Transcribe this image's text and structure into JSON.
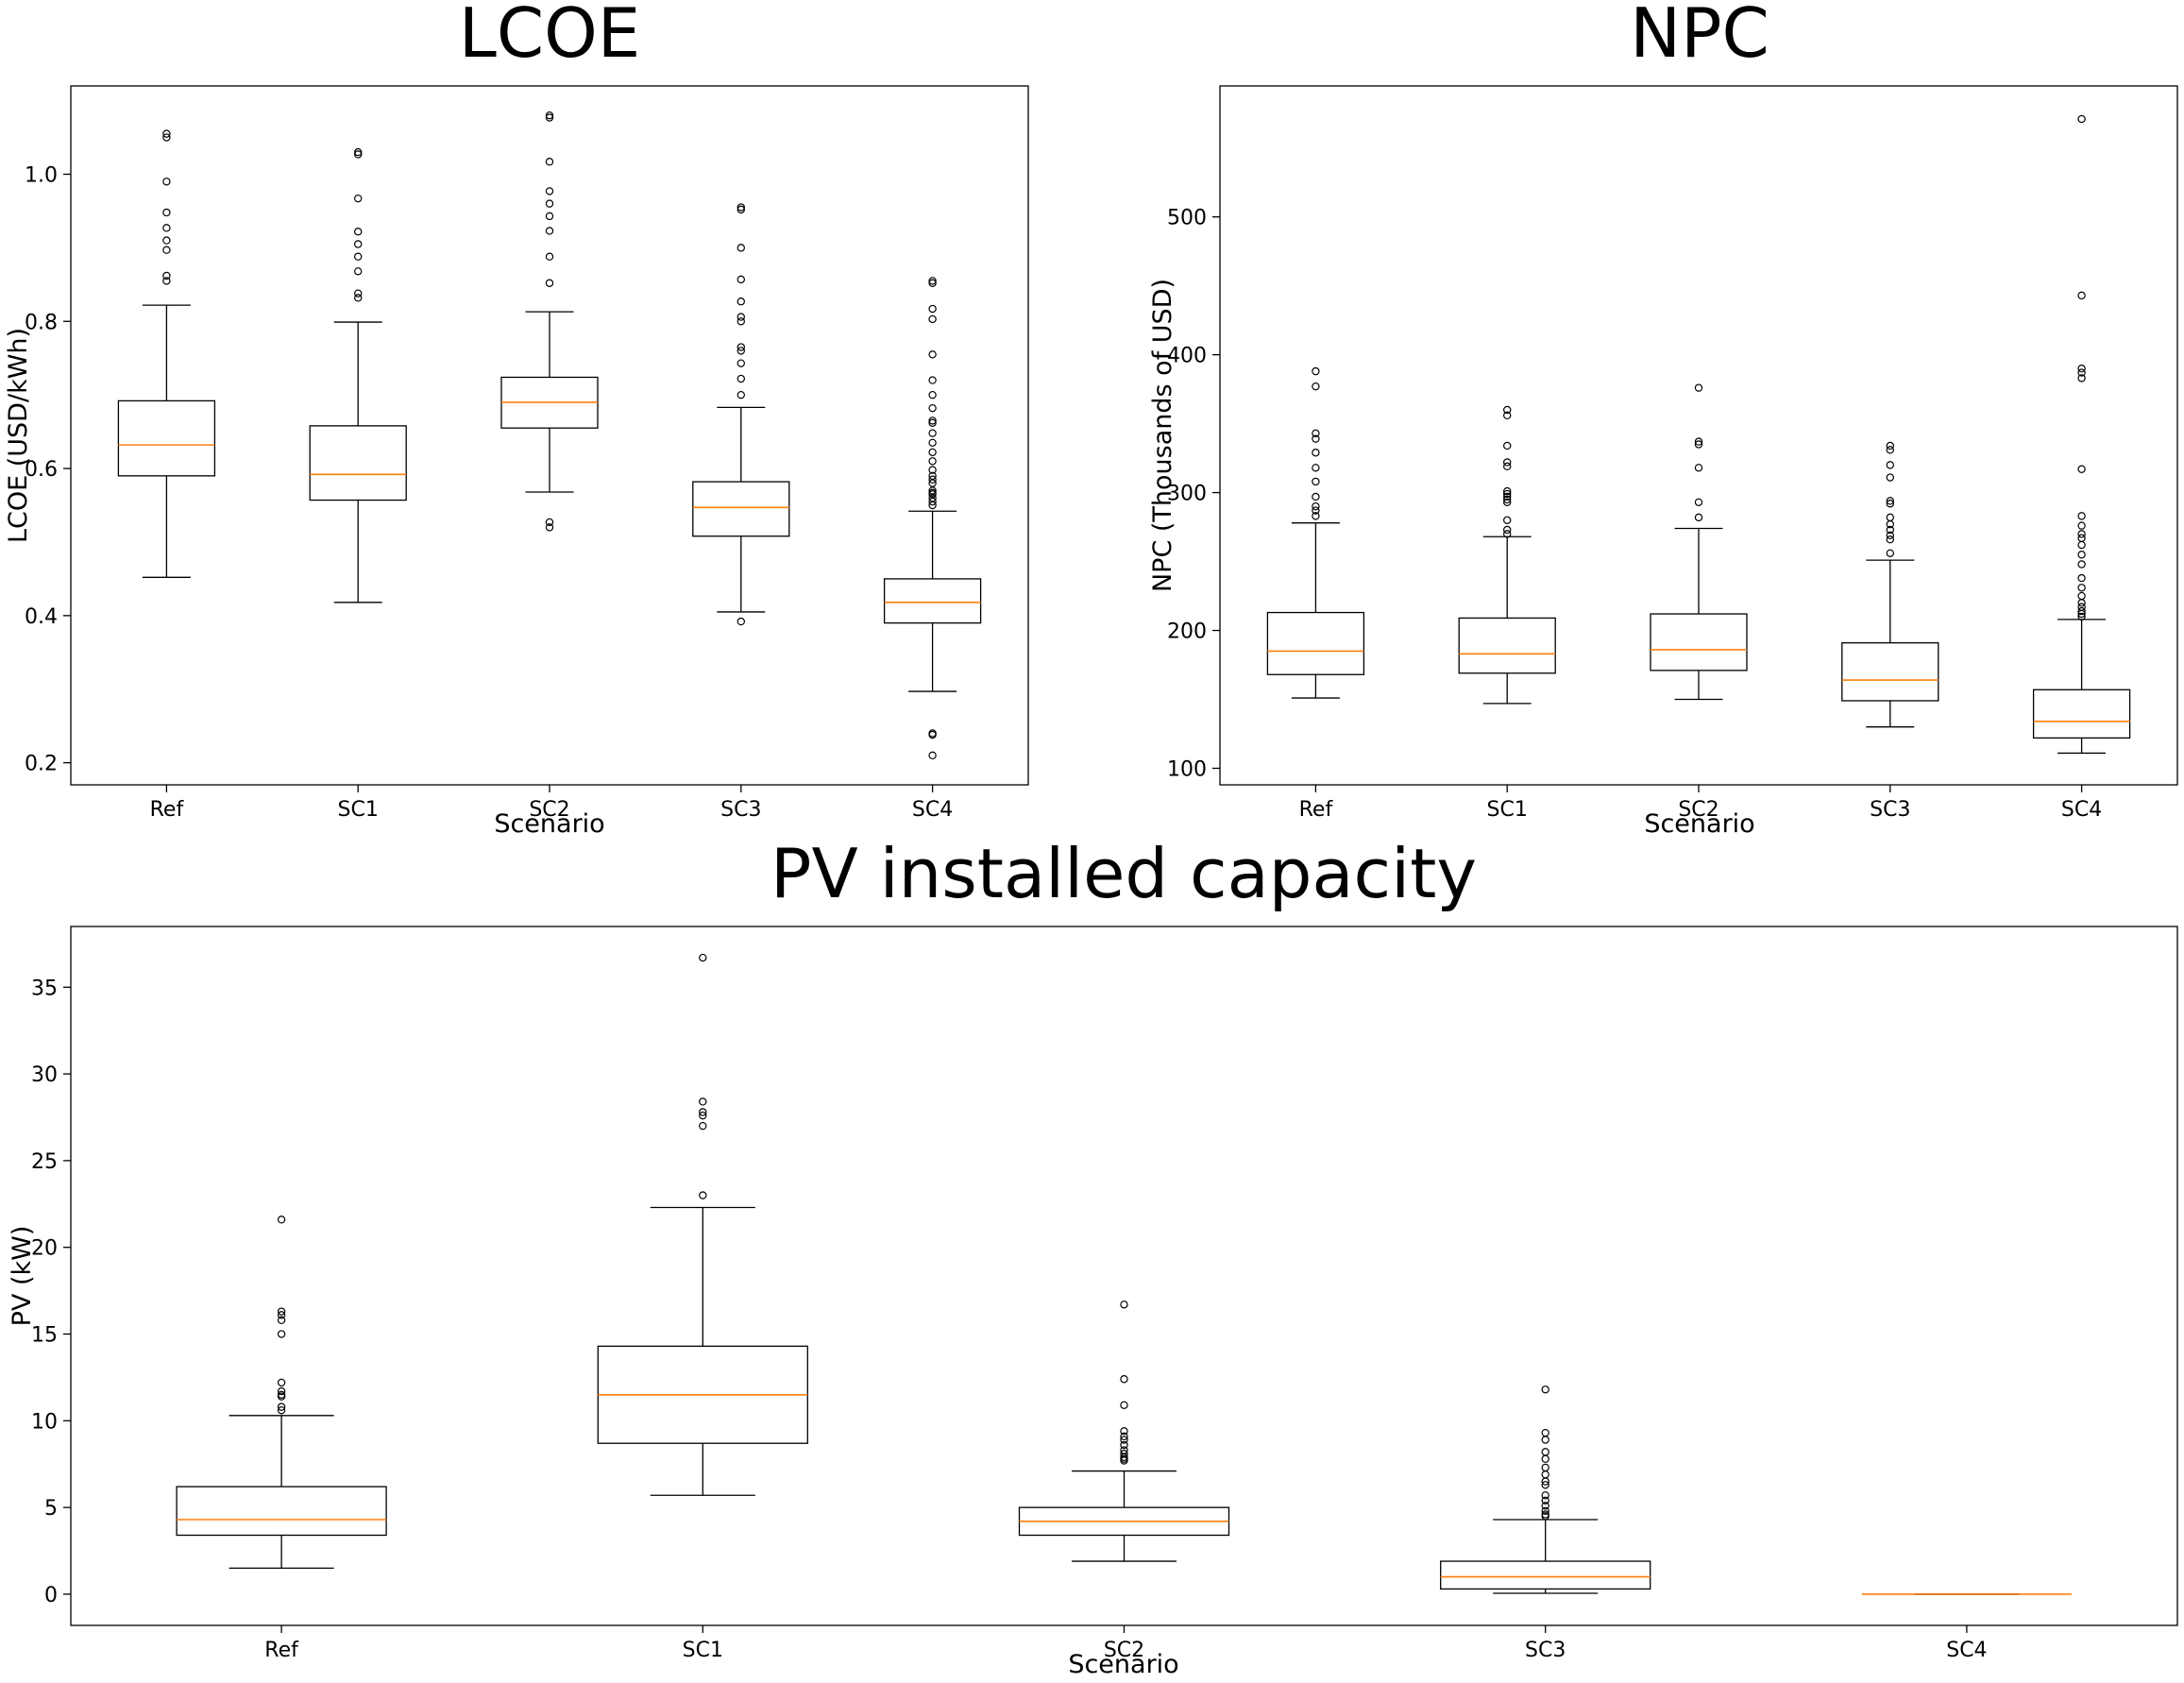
{
  "chart_data": [
    {
      "type": "box",
      "title": "LCOE",
      "xlabel": "Scenario",
      "ylabel": "LCOE (USD/kWh)",
      "categories": [
        "Ref",
        "SC1",
        "SC2",
        "SC3",
        "SC4"
      ],
      "ylim": [
        0.17,
        1.12
      ],
      "yticks": [
        0.2,
        0.4,
        0.6,
        0.8,
        1.0
      ],
      "ytick_labels": [
        "0.2",
        "0.4",
        "0.6",
        "0.8",
        "1.0"
      ],
      "boxes": [
        {
          "category": "Ref",
          "whisker_low": 0.452,
          "q1": 0.59,
          "median": 0.632,
          "q3": 0.692,
          "whisker_high": 0.822,
          "outliers": [
            1.055,
            1.05,
            0.99,
            0.948,
            0.927,
            0.91,
            0.897,
            0.862,
            0.855
          ]
        },
        {
          "category": "SC1",
          "whisker_low": 0.418,
          "q1": 0.557,
          "median": 0.592,
          "q3": 0.658,
          "whisker_high": 0.799,
          "outliers": [
            1.03,
            1.027,
            0.967,
            0.922,
            0.905,
            0.888,
            0.868,
            0.838,
            0.832
          ]
        },
        {
          "category": "SC2",
          "whisker_low": 0.568,
          "q1": 0.655,
          "median": 0.69,
          "q3": 0.724,
          "whisker_high": 0.813,
          "outliers": [
            1.08,
            1.077,
            1.017,
            0.977,
            0.96,
            0.943,
            0.923,
            0.888,
            0.852,
            0.527,
            0.52
          ]
        },
        {
          "category": "SC3",
          "whisker_low": 0.405,
          "q1": 0.508,
          "median": 0.547,
          "q3": 0.582,
          "whisker_high": 0.683,
          "outliers": [
            0.955,
            0.952,
            0.9,
            0.857,
            0.827,
            0.806,
            0.8,
            0.765,
            0.76,
            0.743,
            0.722,
            0.7,
            0.392
          ]
        },
        {
          "category": "SC4",
          "whisker_low": 0.297,
          "q1": 0.39,
          "median": 0.418,
          "q3": 0.45,
          "whisker_high": 0.542,
          "outliers": [
            0.855,
            0.852,
            0.817,
            0.803,
            0.755,
            0.72,
            0.7,
            0.682,
            0.665,
            0.662,
            0.648,
            0.635,
            0.622,
            0.61,
            0.598,
            0.59,
            0.585,
            0.58,
            0.57,
            0.567,
            0.565,
            0.56,
            0.555,
            0.55,
            0.24,
            0.238,
            0.21
          ]
        }
      ]
    },
    {
      "type": "box",
      "title": "NPC",
      "xlabel": "Scenario",
      "ylabel": "NPC (Thousands of USD)",
      "categories": [
        "Ref",
        "SC1",
        "SC2",
        "SC3",
        "SC4"
      ],
      "ylim": [
        88,
        595
      ],
      "yticks": [
        100,
        200,
        300,
        400,
        500
      ],
      "ytick_labels": [
        "100",
        "200",
        "300",
        "400",
        "500"
      ],
      "boxes": [
        {
          "category": "Ref",
          "whisker_low": 151,
          "q1": 168,
          "median": 185,
          "q3": 213,
          "whisker_high": 278,
          "outliers": [
            388,
            377,
            343,
            339,
            329,
            318,
            308,
            297,
            290,
            287,
            283
          ]
        },
        {
          "category": "SC1",
          "whisker_low": 147,
          "q1": 169,
          "median": 183,
          "q3": 209,
          "whisker_high": 268,
          "outliers": [
            360,
            356,
            334,
            322,
            319,
            301,
            299,
            297,
            295,
            293,
            280,
            273,
            270
          ]
        },
        {
          "category": "SC2",
          "whisker_low": 150,
          "q1": 171,
          "median": 186,
          "q3": 212,
          "whisker_high": 274,
          "outliers": [
            376,
            337,
            335,
            318,
            293,
            282
          ]
        },
        {
          "category": "SC3",
          "whisker_low": 130,
          "q1": 149,
          "median": 164,
          "q3": 191,
          "whisker_high": 251,
          "outliers": [
            334,
            331,
            320,
            311,
            294,
            292,
            282,
            277,
            273,
            269,
            266,
            256
          ]
        },
        {
          "category": "SC4",
          "whisker_low": 111,
          "q1": 122,
          "median": 134,
          "q3": 157,
          "whisker_high": 208,
          "outliers": [
            571,
            443,
            390,
            387,
            383,
            317,
            283,
            276,
            270,
            267,
            262,
            255,
            248,
            238,
            231,
            225,
            220,
            217,
            214,
            212,
            210
          ]
        }
      ]
    },
    {
      "type": "box",
      "title": "PV installed capacity",
      "xlabel": "Scenario",
      "ylabel": "PV (kW)",
      "categories": [
        "Ref",
        "SC1",
        "SC2",
        "SC3",
        "SC4"
      ],
      "ylim": [
        -1.8,
        38.5
      ],
      "yticks": [
        0,
        5,
        10,
        15,
        20,
        25,
        30,
        35
      ],
      "ytick_labels": [
        "0",
        "5",
        "10",
        "15",
        "20",
        "25",
        "30",
        "35"
      ],
      "boxes": [
        {
          "category": "Ref",
          "whisker_low": 1.5,
          "q1": 3.4,
          "median": 4.3,
          "q3": 6.2,
          "whisker_high": 10.3,
          "outliers": [
            21.6,
            16.3,
            16.1,
            15.8,
            15.0,
            12.2,
            11.7,
            11.5,
            11.4,
            10.8,
            10.6
          ]
        },
        {
          "category": "SC1",
          "whisker_low": 5.7,
          "q1": 8.7,
          "median": 11.5,
          "q3": 14.3,
          "whisker_high": 22.3,
          "outliers": [
            36.7,
            28.4,
            27.8,
            27.6,
            27.0,
            23.0
          ]
        },
        {
          "category": "SC2",
          "whisker_low": 1.9,
          "q1": 3.4,
          "median": 4.2,
          "q3": 5.0,
          "whisker_high": 7.1,
          "outliers": [
            16.7,
            12.4,
            10.9,
            9.4,
            9.1,
            8.9,
            8.6,
            8.3,
            8.1,
            7.9,
            7.8,
            7.7
          ]
        },
        {
          "category": "SC3",
          "whisker_low": 0.05,
          "q1": 0.3,
          "median": 1.0,
          "q3": 1.9,
          "whisker_high": 4.3,
          "outliers": [
            11.8,
            9.3,
            8.9,
            8.2,
            7.8,
            7.3,
            6.9,
            6.5,
            6.3,
            5.7,
            5.4,
            5.1,
            4.8,
            4.6,
            4.5
          ]
        },
        {
          "category": "SC4",
          "whisker_low": 0,
          "q1": 0,
          "median": 0,
          "q3": 0,
          "whisker_high": 0,
          "outliers": []
        }
      ]
    }
  ],
  "colors": {
    "box": "#000000",
    "median": "#ff7f0e",
    "background": "#ffffff"
  }
}
